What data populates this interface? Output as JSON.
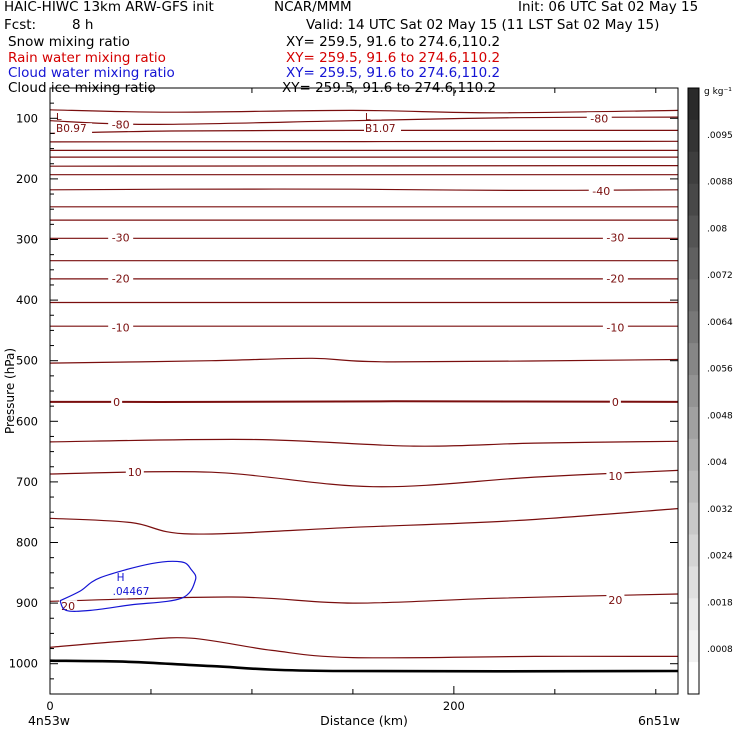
{
  "header": {
    "line1_left": "HAIC-HIWC 13km ARW-GFS init",
    "line1_mid": "NCAR/MMM",
    "line1_right": "Init: 06 UTC Sat 02 May 15",
    "fcst_label": "Fcst:",
    "fcst_value": "8 h",
    "valid": "Valid: 14 UTC Sat 02 May 15 (11 LST Sat 02 May 15)"
  },
  "fields": [
    {
      "name": "Snow mixing ratio",
      "xy": "XY= 259.5, 91.6 to 274.6,110.2",
      "color": "#000000"
    },
    {
      "name": "Rain water mixing ratio",
      "xy": "XY= 259.5, 91.6 to 274.6,110.2",
      "color": "#d40000"
    },
    {
      "name": "Cloud water mixing ratio",
      "xy": "XY= 259.5, 91.6 to 274.6,110.2",
      "color": "#1414d4"
    },
    {
      "name": "Cloud ice mixing ratio",
      "xy": "XY= 259.5, 91.6 to 274.6,110.2",
      "color": "#000000"
    }
  ],
  "chart_data": {
    "type": "contour",
    "title": "",
    "xlabel": "Distance (km)",
    "ylabel": "Pressure (hPa)",
    "x_ticks": [
      "0",
      "200"
    ],
    "x_range": [
      0,
      311
    ],
    "x_endpoints": {
      "left": "4n53w",
      "right": "6n51w"
    },
    "y_ticks": [
      100,
      200,
      300,
      400,
      500,
      600,
      700,
      800,
      900,
      1000
    ],
    "y_range": [
      50,
      1050
    ],
    "colorbar": {
      "units": "g kg⁻¹",
      "labels": [
        ".0095",
        ".0088",
        ".008",
        ".0072",
        ".0064",
        ".0056",
        ".0048",
        ".004",
        ".0032",
        ".0024",
        ".0018",
        ".0008"
      ],
      "colors": [
        "#2a2a2a",
        "#343434",
        "#3e3e3e",
        "#484848",
        "#545454",
        "#606060",
        "#6c6c6c",
        "#787878",
        "#868686",
        "#939393",
        "#a1a1a1",
        "#aeaeae",
        "#bbbbbb",
        "#c8c8c8",
        "#d4d4d4",
        "#dfdfdf",
        "#e9e9e9",
        "#f2f2f2",
        "#ffffff"
      ]
    },
    "temperature_contour_color": "#7a0e0e",
    "temperature_labels": [
      {
        "text": "-80",
        "x": 35,
        "p": 110
      },
      {
        "text": "-80",
        "x": 272,
        "p": 100
      },
      {
        "text": "-40",
        "x": 273,
        "p": 220
      },
      {
        "text": "-30",
        "x": 35,
        "p": 297
      },
      {
        "text": "-30",
        "x": 280,
        "p": 297
      },
      {
        "text": "-20",
        "x": 35,
        "p": 364
      },
      {
        "text": "-20",
        "x": 280,
        "p": 364
      },
      {
        "text": "-10",
        "x": 35,
        "p": 445
      },
      {
        "text": "-10",
        "x": 280,
        "p": 445
      },
      {
        "text": "0",
        "x": 33,
        "p": 568
      },
      {
        "text": "0",
        "x": 280,
        "p": 568
      },
      {
        "text": "10",
        "x": 42,
        "p": 684
      },
      {
        "text": "10",
        "x": 280,
        "p": 690
      },
      {
        "text": "20",
        "x": 9,
        "p": 905
      },
      {
        "text": "20",
        "x": 280,
        "p": 895
      }
    ],
    "temperature_contours": [
      [
        [
          0,
          86
        ],
        [
          60,
          90
        ],
        [
          150,
          87
        ],
        [
          220,
          91
        ],
        [
          311,
          87
        ]
      ],
      [
        [
          0,
          104
        ],
        [
          50,
          110
        ],
        [
          150,
          104
        ],
        [
          230,
          99
        ],
        [
          311,
          98
        ]
      ],
      [
        [
          0,
          125
        ],
        [
          60,
          121
        ],
        [
          150,
          120
        ],
        [
          230,
          120
        ],
        [
          311,
          120
        ]
      ],
      [
        [
          0,
          139
        ],
        [
          311,
          138
        ]
      ],
      [
        [
          0,
          153
        ],
        [
          311,
          153
        ]
      ],
      [
        [
          0,
          164
        ],
        [
          311,
          164
        ]
      ],
      [
        [
          0,
          179
        ],
        [
          311,
          178
        ]
      ],
      [
        [
          0,
          193
        ],
        [
          311,
          193
        ]
      ],
      [
        [
          0,
          218
        ],
        [
          60,
          217
        ],
        [
          150,
          217
        ],
        [
          230,
          219
        ],
        [
          311,
          218
        ]
      ],
      [
        [
          0,
          246
        ],
        [
          311,
          246
        ]
      ],
      [
        [
          0,
          268
        ],
        [
          311,
          268
        ]
      ],
      [
        [
          0,
          298
        ],
        [
          311,
          298
        ]
      ],
      [
        [
          0,
          335
        ],
        [
          311,
          335
        ]
      ],
      [
        [
          0,
          365
        ],
        [
          311,
          365
        ]
      ],
      [
        [
          0,
          404
        ],
        [
          311,
          404
        ]
      ],
      [
        [
          0,
          443
        ],
        [
          311,
          443
        ]
      ],
      [
        [
          0,
          504
        ],
        [
          80,
          500
        ],
        [
          130,
          496
        ],
        [
          170,
          502
        ],
        [
          311,
          498
        ]
      ],
      [
        [
          0,
          568
        ],
        [
          80,
          568
        ],
        [
          170,
          567
        ],
        [
          311,
          568
        ]
      ],
      [
        [
          0,
          634
        ],
        [
          100,
          630
        ],
        [
          180,
          641
        ],
        [
          240,
          636
        ],
        [
          311,
          633
        ]
      ],
      [
        [
          0,
          687
        ],
        [
          80,
          684
        ],
        [
          160,
          708
        ],
        [
          240,
          692
        ],
        [
          311,
          681
        ]
      ],
      [
        [
          0,
          760
        ],
        [
          40,
          767
        ],
        [
          70,
          786
        ],
        [
          150,
          775
        ],
        [
          230,
          764
        ],
        [
          311,
          744
        ]
      ],
      [
        [
          0,
          897
        ],
        [
          90,
          890
        ],
        [
          150,
          900
        ],
        [
          220,
          892
        ],
        [
          311,
          885
        ]
      ],
      [
        [
          0,
          973
        ],
        [
          40,
          962
        ],
        [
          70,
          958
        ],
        [
          110,
          978
        ],
        [
          150,
          990
        ],
        [
          240,
          988
        ],
        [
          311,
          988
        ]
      ]
    ],
    "ground": [
      [
        0,
        995
      ],
      [
        40,
        997
      ],
      [
        80,
        1004
      ],
      [
        140,
        1012
      ],
      [
        311,
        1012
      ]
    ],
    "cloud_water": {
      "label": ".04467",
      "max_marker": "H",
      "outline": [
        [
          5,
          896
        ],
        [
          15,
          880
        ],
        [
          25,
          858
        ],
        [
          50,
          835
        ],
        [
          65,
          832
        ],
        [
          70,
          845
        ],
        [
          72,
          862
        ],
        [
          65,
          892
        ],
        [
          40,
          903
        ],
        [
          20,
          912
        ],
        [
          8,
          912
        ],
        [
          5,
          896
        ]
      ],
      "max_x": 34,
      "max_p": 870
    },
    "extrema": [
      {
        "marker": "L",
        "label": "B0.97",
        "x": 3,
        "p": 108
      },
      {
        "marker": "L",
        "label": "B1.07",
        "x": 156,
        "p": 108
      }
    ]
  }
}
